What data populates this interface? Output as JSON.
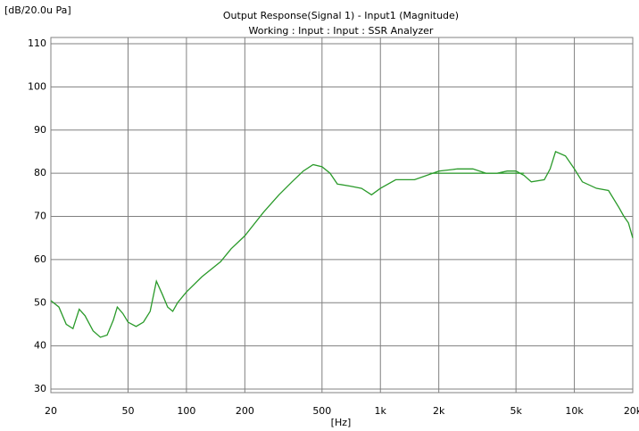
{
  "chart_data": {
    "type": "line",
    "title": "Output Response(Signal 1) - Input1 (Magnitude)",
    "subtitle": "Working : Input : Input : SSR Analyzer",
    "y_label": "[dB/20.0u Pa]",
    "x_label": "[Hz]",
    "log_x": true,
    "grid": true,
    "xlim": [
      20,
      20000
    ],
    "ylim": [
      30,
      110
    ],
    "xticks": [
      20,
      50,
      100,
      200,
      500,
      {
        "value": 1000,
        "label": "1k"
      },
      {
        "value": 2000,
        "label": "2k"
      },
      {
        "value": 5000,
        "label": "5k"
      },
      {
        "value": 10000,
        "label": "10k"
      },
      {
        "value": 20000,
        "label": "20k"
      }
    ],
    "yticks": [
      30,
      40,
      50,
      60,
      70,
      80,
      90,
      100,
      110
    ],
    "series": [
      {
        "color": "#2a9a2a",
        "x": [
          20,
          22,
          24,
          26,
          28,
          30,
          33,
          36,
          39,
          42,
          44,
          47,
          50,
          55,
          60,
          65,
          70,
          75,
          80,
          85,
          90,
          100,
          120,
          150,
          170,
          200,
          250,
          300,
          350,
          400,
          450,
          500,
          550,
          600,
          700,
          800,
          900,
          1000,
          1200,
          1500,
          2000,
          2500,
          3000,
          3500,
          4000,
          4500,
          5000,
          5500,
          6000,
          7000,
          7500,
          8000,
          9000,
          10000,
          11000,
          13000,
          15000,
          17000,
          18000,
          19000,
          20000
        ],
        "values": [
          50.5,
          49,
          45,
          44,
          48.5,
          47,
          43.5,
          42,
          42.5,
          46,
          49,
          47.5,
          45.5,
          44.5,
          45.5,
          48,
          55,
          52,
          49,
          48,
          50,
          52.5,
          56,
          59.5,
          62.5,
          65.5,
          71,
          75,
          78,
          80.5,
          82,
          81.5,
          80,
          77.5,
          77,
          76.5,
          75,
          76.5,
          78.5,
          78.5,
          80.5,
          81,
          81,
          80,
          80,
          80.5,
          80.5,
          79.5,
          78,
          78.5,
          81,
          85,
          84,
          81,
          78,
          76.5,
          76,
          72,
          70,
          68.5,
          65
        ]
      },
      {
        "color": "#2a9a2a",
        "x": [
          1800,
          5500
        ],
        "values": [
          80,
          80
        ]
      }
    ]
  }
}
